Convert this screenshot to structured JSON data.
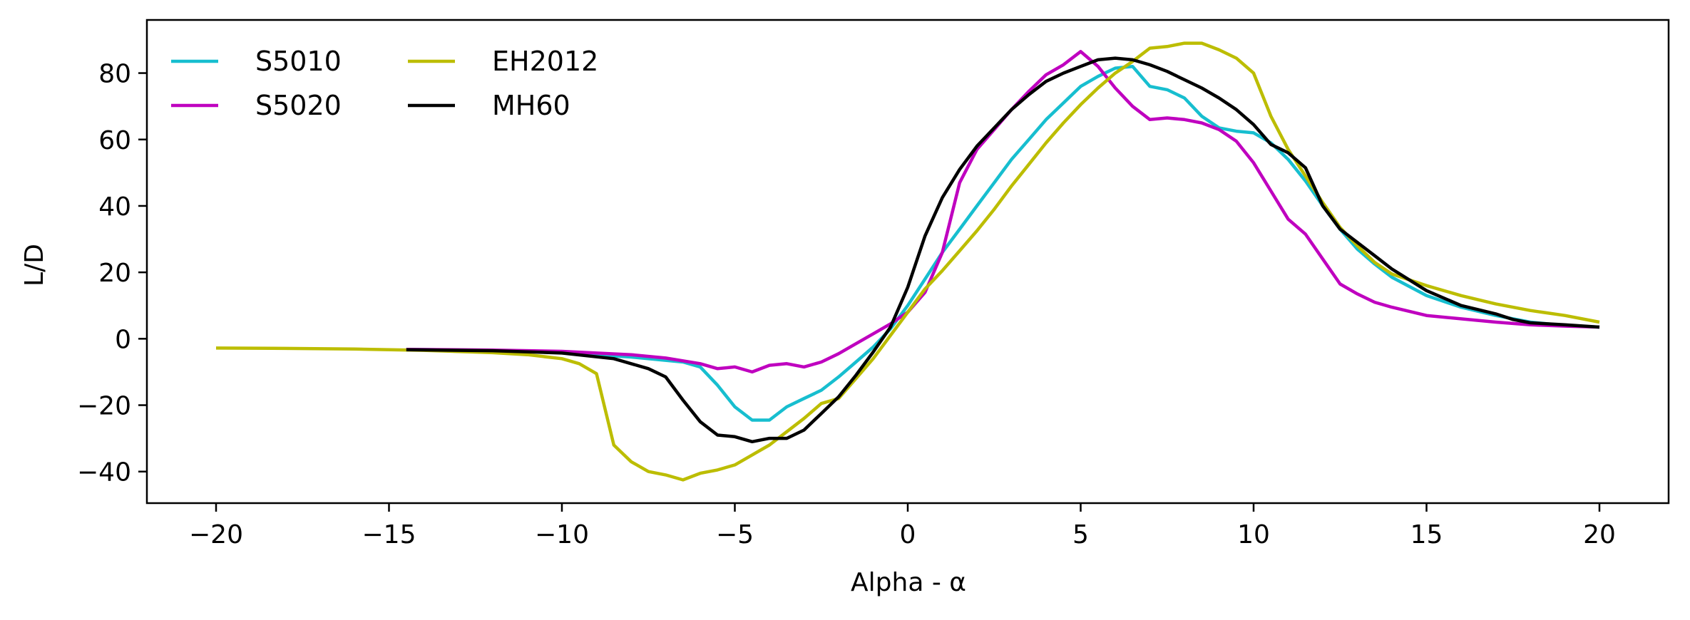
{
  "chart_data": {
    "type": "line",
    "title": "",
    "xlabel": "Alpha - α",
    "ylabel": "L/D",
    "xlim": [
      -22,
      22
    ],
    "ylim": [
      -49.5,
      96
    ],
    "xticks": [
      -20,
      -15,
      -10,
      -5,
      0,
      5,
      10,
      15,
      20
    ],
    "yticks": [
      -40,
      -20,
      0,
      20,
      40,
      60,
      80
    ],
    "xtick_labels": [
      "−20",
      "−15",
      "−10",
      "−5",
      "0",
      "5",
      "10",
      "15",
      "20"
    ],
    "ytick_labels": [
      "−40",
      "−20",
      "0",
      "20",
      "40",
      "60",
      "80"
    ],
    "grid": false,
    "legend_position": "top-left",
    "series": [
      {
        "name": "S5010",
        "color": "#17becf",
        "points": [
          [
            -14.5,
            -3.2
          ],
          [
            -12,
            -3.5
          ],
          [
            -10,
            -4.2
          ],
          [
            -8,
            -5.5
          ],
          [
            -6.5,
            -7
          ],
          [
            -6,
            -8.5
          ],
          [
            -5.5,
            -14
          ],
          [
            -5,
            -20.5
          ],
          [
            -4.5,
            -24.5
          ],
          [
            -4,
            -24.5
          ],
          [
            -3.5,
            -20.5
          ],
          [
            -3,
            -18
          ],
          [
            -2.5,
            -15.5
          ],
          [
            -2,
            -11.5
          ],
          [
            -1.5,
            -7
          ],
          [
            -1,
            -2.5
          ],
          [
            -0.5,
            3
          ],
          [
            0,
            10
          ],
          [
            0.5,
            18
          ],
          [
            1,
            26
          ],
          [
            1.5,
            33
          ],
          [
            2,
            40
          ],
          [
            2.5,
            47
          ],
          [
            3,
            54
          ],
          [
            3.5,
            60
          ],
          [
            4,
            66
          ],
          [
            4.5,
            71
          ],
          [
            5,
            76
          ],
          [
            5.5,
            79
          ],
          [
            6,
            81.5
          ],
          [
            6.5,
            82
          ],
          [
            7,
            76
          ],
          [
            7.5,
            75
          ],
          [
            8,
            72.5
          ],
          [
            8.5,
            67
          ],
          [
            9,
            63.5
          ],
          [
            9.5,
            62.5
          ],
          [
            10,
            62
          ],
          [
            10.5,
            59
          ],
          [
            11,
            54
          ],
          [
            11.5,
            47.5
          ],
          [
            12,
            40
          ],
          [
            12.5,
            33
          ],
          [
            13,
            27
          ],
          [
            13.5,
            22.5
          ],
          [
            14,
            18.5
          ],
          [
            15,
            13
          ],
          [
            16,
            9.5
          ],
          [
            17,
            7
          ],
          [
            18,
            5
          ],
          [
            19,
            4
          ],
          [
            20,
            3.5
          ]
        ]
      },
      {
        "name": "S5020",
        "color": "#bf00bf",
        "points": [
          [
            -14.5,
            -3.2
          ],
          [
            -12,
            -3.4
          ],
          [
            -10,
            -3.8
          ],
          [
            -8,
            -4.8
          ],
          [
            -7,
            -5.8
          ],
          [
            -6,
            -7.5
          ],
          [
            -5.5,
            -9
          ],
          [
            -5,
            -8.5
          ],
          [
            -4.5,
            -10
          ],
          [
            -4,
            -8
          ],
          [
            -3.5,
            -7.5
          ],
          [
            -3,
            -8.5
          ],
          [
            -2.5,
            -7
          ],
          [
            -2,
            -4.5
          ],
          [
            -1.5,
            -1.5
          ],
          [
            -1,
            1.5
          ],
          [
            -0.5,
            4.5
          ],
          [
            0,
            8
          ],
          [
            0.5,
            14
          ],
          [
            1,
            26
          ],
          [
            1.5,
            47
          ],
          [
            2,
            57
          ],
          [
            2.5,
            63
          ],
          [
            3,
            69
          ],
          [
            3.5,
            74.5
          ],
          [
            4,
            79.5
          ],
          [
            4.5,
            82.5
          ],
          [
            5,
            86.5
          ],
          [
            5.5,
            82
          ],
          [
            6,
            75.5
          ],
          [
            6.5,
            70
          ],
          [
            7,
            66
          ],
          [
            7.5,
            66.5
          ],
          [
            8,
            66
          ],
          [
            8.5,
            65
          ],
          [
            9,
            63
          ],
          [
            9.5,
            59.5
          ],
          [
            10,
            53
          ],
          [
            10.5,
            44.5
          ],
          [
            11,
            36
          ],
          [
            11.5,
            31.5
          ],
          [
            12,
            24
          ],
          [
            12.5,
            16.5
          ],
          [
            13,
            13.5
          ],
          [
            13.5,
            11
          ],
          [
            14,
            9.5
          ],
          [
            15,
            7
          ],
          [
            16,
            6
          ],
          [
            17,
            5
          ],
          [
            18,
            4.2
          ],
          [
            19,
            3.8
          ],
          [
            20,
            3.5
          ]
        ]
      },
      {
        "name": "EH2012",
        "color": "#bcbd00",
        "points": [
          [
            -20,
            -2.8
          ],
          [
            -18,
            -2.9
          ],
          [
            -16,
            -3.1
          ],
          [
            -14,
            -3.5
          ],
          [
            -12,
            -4.2
          ],
          [
            -11,
            -4.8
          ],
          [
            -10,
            -6
          ],
          [
            -9.5,
            -7.5
          ],
          [
            -9,
            -10.5
          ],
          [
            -8.5,
            -32
          ],
          [
            -8,
            -37
          ],
          [
            -7.5,
            -40
          ],
          [
            -7,
            -41
          ],
          [
            -6.5,
            -42.5
          ],
          [
            -6,
            -40.5
          ],
          [
            -5.5,
            -39.5
          ],
          [
            -5,
            -38
          ],
          [
            -4.5,
            -35
          ],
          [
            -4,
            -32
          ],
          [
            -3.5,
            -28
          ],
          [
            -3,
            -24
          ],
          [
            -2.5,
            -19.5
          ],
          [
            -2,
            -18
          ],
          [
            -1.5,
            -12
          ],
          [
            -1,
            -6
          ],
          [
            -0.5,
            1
          ],
          [
            0,
            8
          ],
          [
            0.5,
            15
          ],
          [
            1,
            20.5
          ],
          [
            1.5,
            26.5
          ],
          [
            2,
            32.5
          ],
          [
            2.5,
            39
          ],
          [
            3,
            46
          ],
          [
            3.5,
            52.5
          ],
          [
            4,
            59
          ],
          [
            4.5,
            65
          ],
          [
            5,
            70.5
          ],
          [
            5.5,
            75.5
          ],
          [
            6,
            80
          ],
          [
            6.5,
            83.5
          ],
          [
            7,
            87.5
          ],
          [
            7.5,
            88
          ],
          [
            8,
            89
          ],
          [
            8.5,
            89
          ],
          [
            9,
            87
          ],
          [
            9.5,
            84.5
          ],
          [
            10,
            80
          ],
          [
            10.5,
            67
          ],
          [
            11,
            57
          ],
          [
            11.5,
            49
          ],
          [
            12,
            41
          ],
          [
            12.5,
            33.5
          ],
          [
            13,
            28
          ],
          [
            13.5,
            23
          ],
          [
            14,
            19.5
          ],
          [
            15,
            16
          ],
          [
            16,
            13
          ],
          [
            17,
            10.5
          ],
          [
            18,
            8.5
          ],
          [
            19,
            7
          ],
          [
            20,
            5
          ]
        ]
      },
      {
        "name": "MH60",
        "color": "#000000",
        "points": [
          [
            -14.5,
            -3.3
          ],
          [
            -12,
            -3.6
          ],
          [
            -10,
            -4.3
          ],
          [
            -8.5,
            -6
          ],
          [
            -8,
            -7.5
          ],
          [
            -7.5,
            -9
          ],
          [
            -7,
            -11.5
          ],
          [
            -6.5,
            -18.5
          ],
          [
            -6,
            -25
          ],
          [
            -5.5,
            -29
          ],
          [
            -5,
            -29.5
          ],
          [
            -4.5,
            -31
          ],
          [
            -4,
            -30
          ],
          [
            -3.5,
            -30
          ],
          [
            -3,
            -27.5
          ],
          [
            -2.5,
            -22.5
          ],
          [
            -2,
            -17.5
          ],
          [
            -1.5,
            -11
          ],
          [
            -1,
            -4
          ],
          [
            -0.5,
            3.5
          ],
          [
            0,
            15.5
          ],
          [
            0.5,
            31
          ],
          [
            1,
            42.5
          ],
          [
            1.5,
            51
          ],
          [
            2,
            58
          ],
          [
            2.5,
            63.5
          ],
          [
            3,
            69
          ],
          [
            3.5,
            73.5
          ],
          [
            4,
            77.5
          ],
          [
            4.5,
            80
          ],
          [
            5,
            82
          ],
          [
            5.5,
            84
          ],
          [
            6,
            84.5
          ],
          [
            6.5,
            84
          ],
          [
            7,
            82.5
          ],
          [
            7.5,
            80.5
          ],
          [
            8,
            78
          ],
          [
            8.5,
            75.5
          ],
          [
            9,
            72.5
          ],
          [
            9.5,
            69
          ],
          [
            10,
            64.5
          ],
          [
            10.5,
            58.5
          ],
          [
            11,
            56
          ],
          [
            11.5,
            51.5
          ],
          [
            12,
            40
          ],
          [
            12.5,
            33
          ],
          [
            13,
            29
          ],
          [
            13.5,
            25
          ],
          [
            14,
            21
          ],
          [
            15,
            14.5
          ],
          [
            16,
            10
          ],
          [
            17,
            7.5
          ],
          [
            17.5,
            5.8
          ],
          [
            18,
            4.8
          ],
          [
            19,
            4.2
          ],
          [
            20,
            3.5
          ]
        ]
      }
    ]
  }
}
